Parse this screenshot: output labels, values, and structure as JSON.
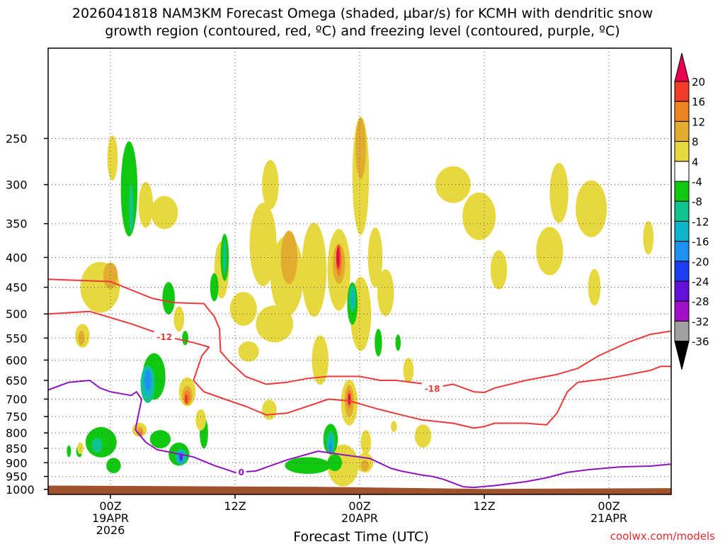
{
  "chart_data": {
    "type": "time-height cross section",
    "title_line1": "2026041818 NAM3KM Forecast Omega (shaded, µbar/s) for KCMH with dendritic snow",
    "title_line2": "growth region (contoured, red, ºC) and freezing level (contoured, purple, ºC)",
    "xlabel": "Forecast Time (UTC)",
    "credit": "coolwx.com/models",
    "x_range_hours": [
      -6,
      54
    ],
    "x_ticks": [
      {
        "hour": 0,
        "lines": [
          "00Z",
          "19APR",
          "2026"
        ]
      },
      {
        "hour": 12,
        "lines": [
          "12Z"
        ]
      },
      {
        "hour": 24,
        "lines": [
          "00Z",
          "20APR"
        ]
      },
      {
        "hour": 36,
        "lines": [
          "12Z"
        ]
      },
      {
        "hour": 48,
        "lines": [
          "00Z",
          "21APR"
        ]
      }
    ],
    "y_range_hpa": [
      1020,
      175
    ],
    "y_ticks": [
      250,
      300,
      350,
      400,
      450,
      500,
      550,
      600,
      650,
      700,
      750,
      800,
      850,
      900,
      950,
      1000
    ],
    "ground": [
      [
        -6,
        985
      ],
      [
        20,
        990
      ],
      [
        36,
        998
      ],
      [
        54,
        995
      ]
    ],
    "colorbar": {
      "labels": [
        "20",
        "16",
        "12",
        "8",
        "4",
        "-4",
        "-8",
        "-12",
        "-16",
        "-20",
        "-24",
        "-28",
        "-32",
        "-36"
      ],
      "colors": [
        "#e8004e",
        "#f03c28",
        "#ee8424",
        "#e2ac30",
        "#e8d840",
        "#ffffff",
        "#10c810",
        "#10c48e",
        "#10b4c8",
        "#1e90f0",
        "#1e3cf0",
        "#6410d8",
        "#a010c8",
        "#a0a0a0",
        "#000000"
      ]
    },
    "omega_cells": [
      {
        "t": -1.0,
        "p": 450,
        "dt": 1.9,
        "dp": 85,
        "v": 4
      },
      {
        "t": 0.0,
        "p": 430,
        "dt": 0.7,
        "dp": 40,
        "v": 8
      },
      {
        "t": -2.7,
        "p": 545,
        "dt": 0.7,
        "dp": 45,
        "v": 4
      },
      {
        "t": -2.8,
        "p": 550,
        "dt": 0.3,
        "dp": 25,
        "v": 8
      },
      {
        "t": 0.2,
        "p": 270,
        "dt": 0.5,
        "dp": 45,
        "v": 4
      },
      {
        "t": 1.8,
        "p": 305,
        "dt": 0.8,
        "dp": 110,
        "v": -4
      },
      {
        "t": 2.0,
        "p": 330,
        "dt": 0.2,
        "dp": 60,
        "v": -8
      },
      {
        "t": 3.4,
        "p": 325,
        "dt": 0.7,
        "dp": 55,
        "v": 4
      },
      {
        "t": 5.2,
        "p": 335,
        "dt": 1.3,
        "dp": 40,
        "v": 4
      },
      {
        "t": 5.6,
        "p": 470,
        "dt": 0.6,
        "dp": 55,
        "v": -4
      },
      {
        "t": 6.6,
        "p": 510,
        "dt": 0.5,
        "dp": 45,
        "v": 4
      },
      {
        "t": 7.2,
        "p": 550,
        "dt": 0.3,
        "dp": 25,
        "v": -4
      },
      {
        "t": 4.2,
        "p": 640,
        "dt": 1.1,
        "dp": 110,
        "v": -4
      },
      {
        "t": 3.6,
        "p": 660,
        "dt": 0.7,
        "dp": 90,
        "v": -8
      },
      {
        "t": 3.6,
        "p": 655,
        "dt": 0.45,
        "dp": 70,
        "v": -12
      },
      {
        "t": 3.6,
        "p": 650,
        "dt": 0.3,
        "dp": 45,
        "v": -16
      },
      {
        "t": 2.8,
        "p": 790,
        "dt": 0.7,
        "dp": 35,
        "v": 4
      },
      {
        "t": 2.8,
        "p": 795,
        "dt": 0.35,
        "dp": 22,
        "v": 8
      },
      {
        "t": 2.9,
        "p": 800,
        "dt": 0.2,
        "dp": 12,
        "v": 12
      },
      {
        "t": 7.4,
        "p": 680,
        "dt": 0.8,
        "dp": 70,
        "v": 4
      },
      {
        "t": 7.4,
        "p": 690,
        "dt": 0.5,
        "dp": 45,
        "v": 8
      },
      {
        "t": 7.4,
        "p": 695,
        "dt": 0.3,
        "dp": 30,
        "v": 12
      },
      {
        "t": 7.3,
        "p": 700,
        "dt": 0.15,
        "dp": 18,
        "v": 16
      },
      {
        "t": 6.6,
        "p": 870,
        "dt": 1.0,
        "dp": 70,
        "v": -4
      },
      {
        "t": 6.8,
        "p": 880,
        "dt": 0.55,
        "dp": 45,
        "v": -8
      },
      {
        "t": 6.8,
        "p": 880,
        "dt": 0.4,
        "dp": 35,
        "v": -12
      },
      {
        "t": 6.8,
        "p": 880,
        "dt": 0.25,
        "dp": 25,
        "v": -16
      },
      {
        "t": 6.8,
        "p": 880,
        "dt": 0.12,
        "dp": 15,
        "v": -24
      },
      {
        "t": 4.8,
        "p": 820,
        "dt": 1.0,
        "dp": 50,
        "v": -4
      },
      {
        "t": 9.0,
        "p": 800,
        "dt": 0.4,
        "dp": 90,
        "v": -4
      },
      {
        "t": 8.7,
        "p": 760,
        "dt": 0.5,
        "dp": 55,
        "v": 4
      },
      {
        "t": -0.9,
        "p": 830,
        "dt": 1.5,
        "dp": 90,
        "v": -4
      },
      {
        "t": 0.3,
        "p": 910,
        "dt": 0.7,
        "dp": 45,
        "v": -4
      },
      {
        "t": -1.3,
        "p": 840,
        "dt": 0.5,
        "dp": 40,
        "v": -8
      },
      {
        "t": -3.0,
        "p": 860,
        "dt": 0.3,
        "dp": 30,
        "v": -4
      },
      {
        "t": -4.0,
        "p": 860,
        "dt": 0.2,
        "dp": 30,
        "v": -4
      },
      {
        "t": -2.9,
        "p": 850,
        "dt": 0.3,
        "dp": 30,
        "v": 4
      },
      {
        "t": 10.7,
        "p": 420,
        "dt": 0.7,
        "dp": 90,
        "v": 4
      },
      {
        "t": 11.0,
        "p": 400,
        "dt": 0.4,
        "dp": 70,
        "v": -4
      },
      {
        "t": 11.0,
        "p": 400,
        "dt": 0.15,
        "dp": 50,
        "v": -8
      },
      {
        "t": 10.0,
        "p": 450,
        "dt": 0.4,
        "dp": 45,
        "v": -4
      },
      {
        "t": 14.7,
        "p": 380,
        "dt": 1.3,
        "dp": 120,
        "v": 4
      },
      {
        "t": 15.4,
        "p": 300,
        "dt": 0.8,
        "dp": 55,
        "v": 4
      },
      {
        "t": 17.0,
        "p": 430,
        "dt": 1.6,
        "dp": 130,
        "v": 4
      },
      {
        "t": 17.2,
        "p": 400,
        "dt": 0.8,
        "dp": 80,
        "v": 8
      },
      {
        "t": 15.8,
        "p": 520,
        "dt": 1.8,
        "dp": 70,
        "v": 4
      },
      {
        "t": 12.8,
        "p": 490,
        "dt": 1.3,
        "dp": 60,
        "v": 4
      },
      {
        "t": 13.3,
        "p": 580,
        "dt": 1.0,
        "dp": 40,
        "v": 4
      },
      {
        "t": 15.3,
        "p": 730,
        "dt": 0.7,
        "dp": 50,
        "v": 4
      },
      {
        "t": 19.6,
        "p": 420,
        "dt": 1.2,
        "dp": 150,
        "v": 4
      },
      {
        "t": 20.2,
        "p": 600,
        "dt": 0.8,
        "dp": 110,
        "v": 4
      },
      {
        "t": 22.0,
        "p": 420,
        "dt": 1.1,
        "dp": 130,
        "v": 4
      },
      {
        "t": 22.0,
        "p": 410,
        "dt": 0.6,
        "dp": 60,
        "v": 8
      },
      {
        "t": 22.0,
        "p": 405,
        "dt": 0.3,
        "dp": 45,
        "v": 12
      },
      {
        "t": 21.95,
        "p": 400,
        "dt": 0.2,
        "dp": 35,
        "v": 16
      },
      {
        "t": 21.9,
        "p": 400,
        "dt": 0.12,
        "dp": 25,
        "v": 20
      },
      {
        "t": 24.1,
        "p": 290,
        "dt": 0.8,
        "dp": 130,
        "v": 4
      },
      {
        "t": 24.1,
        "p": 260,
        "dt": 0.5,
        "dp": 60,
        "v": 8
      },
      {
        "t": 24.1,
        "p": 500,
        "dt": 1.0,
        "dp": 140,
        "v": 4
      },
      {
        "t": 23.3,
        "p": 480,
        "dt": 0.5,
        "dp": 75,
        "v": -4
      },
      {
        "t": 23.3,
        "p": 470,
        "dt": 0.3,
        "dp": 45,
        "v": -8
      },
      {
        "t": 23.3,
        "p": 470,
        "dt": 0.15,
        "dp": 25,
        "v": -12
      },
      {
        "t": 25.5,
        "p": 400,
        "dt": 0.7,
        "dp": 90,
        "v": 4
      },
      {
        "t": 26.5,
        "p": 460,
        "dt": 0.8,
        "dp": 80,
        "v": 4
      },
      {
        "t": 25.8,
        "p": 560,
        "dt": 0.35,
        "dp": 55,
        "v": -4
      },
      {
        "t": 27.7,
        "p": 560,
        "dt": 0.25,
        "dp": 30,
        "v": -4
      },
      {
        "t": 22.4,
        "p": 910,
        "dt": 1.5,
        "dp": 140,
        "v": 4
      },
      {
        "t": 21.6,
        "p": 900,
        "dt": 0.7,
        "dp": 50,
        "v": -4
      },
      {
        "t": 23.0,
        "p": 710,
        "dt": 0.8,
        "dp": 120,
        "v": 4
      },
      {
        "t": 23.0,
        "p": 705,
        "dt": 0.45,
        "dp": 80,
        "v": 8
      },
      {
        "t": 23.0,
        "p": 700,
        "dt": 0.25,
        "dp": 45,
        "v": 12
      },
      {
        "t": 23.0,
        "p": 700,
        "dt": 0.12,
        "dp": 25,
        "v": 20
      },
      {
        "t": 21.2,
        "p": 820,
        "dt": 0.7,
        "dp": 90,
        "v": -4
      },
      {
        "t": 21.2,
        "p": 830,
        "dt": 0.4,
        "dp": 65,
        "v": -8
      },
      {
        "t": 21.2,
        "p": 840,
        "dt": 0.25,
        "dp": 40,
        "v": -12
      },
      {
        "t": 21.2,
        "p": 850,
        "dt": 0.12,
        "dp": 25,
        "v": -16
      },
      {
        "t": 19.0,
        "p": 910,
        "dt": 2.2,
        "dp": 50,
        "v": -4
      },
      {
        "t": 24.6,
        "p": 830,
        "dt": 0.5,
        "dp": 70,
        "v": 4
      },
      {
        "t": 24.5,
        "p": 900,
        "dt": 0.8,
        "dp": 60,
        "v": 4
      },
      {
        "t": 24.5,
        "p": 910,
        "dt": 0.4,
        "dp": 30,
        "v": 8
      },
      {
        "t": 28.7,
        "p": 625,
        "dt": 0.5,
        "dp": 55,
        "v": 4
      },
      {
        "t": 30.1,
        "p": 810,
        "dt": 0.8,
        "dp": 65,
        "v": 4
      },
      {
        "t": 27.3,
        "p": 780,
        "dt": 0.3,
        "dp": 25,
        "v": 4
      },
      {
        "t": 33.0,
        "p": 300,
        "dt": 1.7,
        "dp": 40,
        "v": 4
      },
      {
        "t": 35.5,
        "p": 340,
        "dt": 1.6,
        "dp": 60,
        "v": 4
      },
      {
        "t": 37.4,
        "p": 420,
        "dt": 0.8,
        "dp": 60,
        "v": 4
      },
      {
        "t": 43.2,
        "p": 310,
        "dt": 0.9,
        "dp": 70,
        "v": 4
      },
      {
        "t": 42.3,
        "p": 390,
        "dt": 1.3,
        "dp": 70,
        "v": 4
      },
      {
        "t": 46.3,
        "p": 330,
        "dt": 1.5,
        "dp": 70,
        "v": 4
      },
      {
        "t": 46.6,
        "p": 450,
        "dt": 0.6,
        "dp": 60,
        "v": 4
      },
      {
        "t": 51.8,
        "p": 370,
        "dt": 0.5,
        "dp": 45,
        "v": 4
      }
    ],
    "contours": [
      {
        "name": "dgz-upper-minus-12",
        "color": "#ec3a3a",
        "level_label": "-12",
        "label_at": [
          5.2,
          548
        ],
        "points": [
          [
            -6,
            436
          ],
          [
            0,
            440
          ],
          [
            4,
            470
          ],
          [
            6,
            478
          ],
          [
            9,
            480
          ],
          [
            9.4,
            490
          ],
          [
            10,
            505
          ],
          [
            10.5,
            530
          ],
          [
            10.6,
            580
          ],
          [
            11.5,
            605
          ],
          [
            13,
            640
          ],
          [
            15,
            660
          ],
          [
            17,
            655
          ],
          [
            19,
            645
          ],
          [
            21,
            640
          ],
          [
            24,
            640
          ],
          [
            25,
            645
          ],
          [
            26,
            650
          ],
          [
            27.5,
            650
          ],
          [
            29,
            655
          ],
          [
            32,
            665
          ],
          [
            33,
            660
          ],
          [
            35,
            680
          ],
          [
            36,
            682
          ],
          [
            37,
            670
          ],
          [
            40,
            650
          ],
          [
            43,
            635
          ],
          [
            45,
            620
          ],
          [
            47,
            590
          ],
          [
            50,
            558
          ],
          [
            52,
            542
          ],
          [
            54,
            535
          ]
        ]
      },
      {
        "name": "dgz-lower-minus-18",
        "color": "#ec3a3a",
        "level_label": "-18",
        "label_at": [
          31,
          672
        ],
        "points": [
          [
            -6,
            500
          ],
          [
            -2,
            495
          ],
          [
            2,
            520
          ],
          [
            4,
            535
          ],
          [
            6,
            550
          ],
          [
            8,
            560
          ],
          [
            9.5,
            570
          ],
          [
            8.8,
            590
          ],
          [
            8,
            650
          ],
          [
            9,
            680
          ],
          [
            11,
            700
          ],
          [
            13,
            720
          ],
          [
            15,
            745
          ],
          [
            17,
            740
          ],
          [
            19,
            720
          ],
          [
            21,
            700
          ],
          [
            23,
            705
          ],
          [
            26,
            730
          ],
          [
            28,
            745
          ],
          [
            30,
            760
          ],
          [
            33,
            770
          ],
          [
            35,
            785
          ],
          [
            36,
            780
          ],
          [
            37,
            770
          ],
          [
            40,
            770
          ],
          [
            42,
            775
          ],
          [
            43,
            740
          ],
          [
            44,
            680
          ],
          [
            45,
            655
          ],
          [
            48,
            645
          ],
          [
            50,
            635
          ],
          [
            52,
            625
          ],
          [
            53,
            615
          ],
          [
            54,
            615
          ]
        ]
      },
      {
        "name": "freezing-level-0",
        "color": "#9012c0",
        "level_label": "0",
        "label_at": [
          12.6,
          935
        ],
        "points": [
          [
            -6,
            675
          ],
          [
            -4,
            655
          ],
          [
            -2,
            650
          ],
          [
            -1,
            670
          ],
          [
            0,
            680
          ],
          [
            1,
            685
          ],
          [
            2,
            690
          ],
          [
            2.5,
            680
          ],
          [
            3,
            700
          ],
          [
            2.4,
            790
          ],
          [
            3.4,
            830
          ],
          [
            4.5,
            855
          ],
          [
            6,
            865
          ],
          [
            8,
            880
          ],
          [
            10,
            910
          ],
          [
            12,
            935
          ],
          [
            14,
            930
          ],
          [
            17,
            890
          ],
          [
            20,
            860
          ],
          [
            22,
            870
          ],
          [
            25,
            885
          ],
          [
            27,
            920
          ],
          [
            28,
            930
          ],
          [
            30,
            945
          ],
          [
            31,
            950
          ],
          [
            32,
            960
          ],
          [
            34,
            990
          ],
          [
            35,
            992
          ],
          [
            37,
            985
          ],
          [
            40,
            970
          ],
          [
            42,
            955
          ],
          [
            44,
            935
          ],
          [
            46,
            925
          ],
          [
            49,
            915
          ],
          [
            52,
            912
          ],
          [
            54,
            905
          ]
        ]
      }
    ]
  }
}
